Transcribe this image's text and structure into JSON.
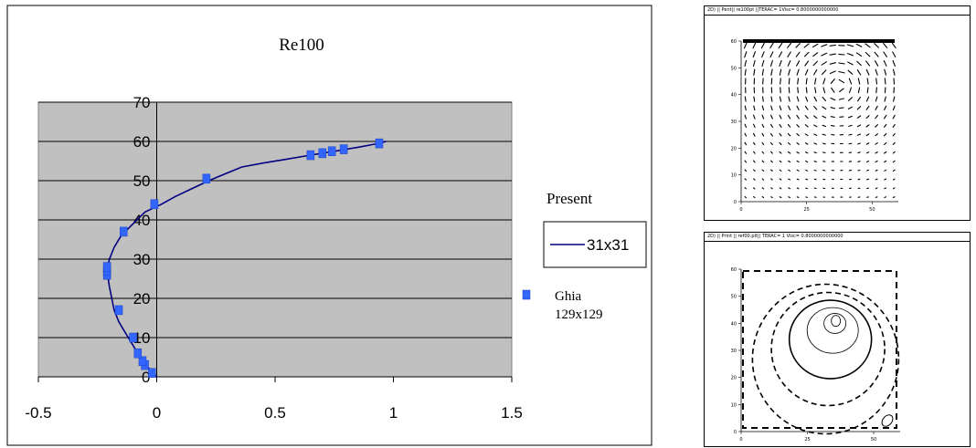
{
  "chart_data": {
    "type": "line+scatter",
    "title": "Re100",
    "xlim": [
      -0.5,
      1.5
    ],
    "ylim": [
      0,
      70
    ],
    "x_ticks": [
      "-0.5",
      "0",
      "0.5",
      "1",
      "1.5"
    ],
    "y_ticks": [
      "0",
      "10",
      "20",
      "30",
      "40",
      "50",
      "60",
      "70"
    ],
    "grid": "horizontal",
    "legend_title": "Present",
    "legend_position": "right",
    "colors": {
      "plot_bg": "#c0c0c0",
      "line": "#000080",
      "marker": "#3366ff"
    },
    "series": [
      {
        "name": "31x31",
        "kind": "line",
        "points": [
          [
            0.0,
            0
          ],
          [
            -0.03,
            2
          ],
          [
            -0.06,
            4
          ],
          [
            -0.08,
            6
          ],
          [
            -0.1,
            8
          ],
          [
            -0.12,
            10
          ],
          [
            -0.14,
            12
          ],
          [
            -0.16,
            14
          ],
          [
            -0.18,
            17
          ],
          [
            -0.19,
            20
          ],
          [
            -0.2,
            23
          ],
          [
            -0.21,
            27
          ],
          [
            -0.2,
            30
          ],
          [
            -0.18,
            33
          ],
          [
            -0.15,
            36
          ],
          [
            -0.1,
            39
          ],
          [
            -0.05,
            42
          ],
          [
            0.02,
            44
          ],
          [
            0.08,
            46
          ],
          [
            0.15,
            48
          ],
          [
            0.22,
            50
          ],
          [
            0.3,
            52
          ],
          [
            0.36,
            53.5
          ],
          [
            0.45,
            54.5
          ],
          [
            0.55,
            55.5
          ],
          [
            0.65,
            56.5
          ],
          [
            0.75,
            57.5
          ],
          [
            0.85,
            58.5
          ],
          [
            0.92,
            59.3
          ],
          [
            0.97,
            60
          ]
        ]
      },
      {
        "name": "Ghia 129x129",
        "kind": "scatter",
        "points": [
          [
            -0.02,
            1
          ],
          [
            -0.05,
            3
          ],
          [
            -0.06,
            4
          ],
          [
            -0.08,
            6
          ],
          [
            -0.1,
            10
          ],
          [
            -0.16,
            17
          ],
          [
            -0.21,
            26
          ],
          [
            -0.21,
            27
          ],
          [
            -0.21,
            28
          ],
          [
            -0.14,
            37
          ],
          [
            -0.01,
            44
          ],
          [
            0.21,
            50.5
          ],
          [
            0.65,
            56.5
          ],
          [
            0.7,
            57
          ],
          [
            0.74,
            57.5
          ],
          [
            0.79,
            58
          ],
          [
            0.94,
            59.5
          ]
        ]
      }
    ]
  },
  "panels": {
    "vector": {
      "title": "2D) || Pent|| re100pt ||TERAC=      1Visc= 0.8000000000000",
      "x_ticks": [
        "0",
        "25",
        "50"
      ],
      "y_ticks": [
        "0",
        "10",
        "20",
        "30",
        "40",
        "50",
        "60"
      ]
    },
    "stream": {
      "title": "2D) || Print || ref00.plt|| TERAC=      1 Visc= 0.8000000000000",
      "x_ticks": [
        "0",
        "25",
        "50"
      ],
      "y_ticks": [
        "0",
        "10",
        "20",
        "30",
        "40",
        "50",
        "60"
      ]
    }
  }
}
